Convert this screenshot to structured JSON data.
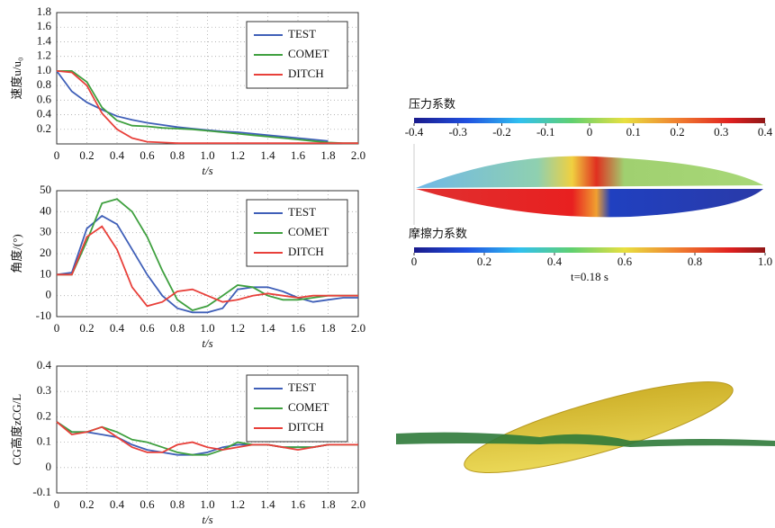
{
  "chart_data": [
    {
      "type": "line",
      "ylabel": "速度u/u₀",
      "xlabel": "t/s",
      "x": [
        0,
        0.1,
        0.2,
        0.3,
        0.4,
        0.5,
        0.6,
        0.7,
        0.8,
        0.9,
        1.0,
        1.1,
        1.2,
        1.3,
        1.4,
        1.5,
        1.6,
        1.7,
        1.8,
        1.9,
        2.0
      ],
      "series": [
        {
          "name": "TEST",
          "color": "#3f5fb8",
          "values": [
            1.0,
            0.72,
            0.57,
            0.47,
            0.38,
            0.33,
            0.29,
            0.26,
            0.23,
            0.21,
            0.19,
            0.17,
            0.16,
            0.14,
            0.12,
            0.1,
            0.08,
            0.06,
            0.04,
            null,
            null
          ]
        },
        {
          "name": "COMET",
          "color": "#3fa03f",
          "values": [
            1.0,
            1.0,
            0.85,
            0.5,
            0.32,
            0.25,
            0.24,
            0.22,
            0.21,
            0.2,
            0.18,
            0.16,
            0.14,
            0.12,
            0.1,
            0.08,
            0.06,
            0.04,
            0.02,
            0.01,
            0.01
          ]
        },
        {
          "name": "DITCH",
          "color": "#e8403a",
          "values": [
            1.0,
            0.98,
            0.8,
            0.42,
            0.2,
            0.08,
            0.03,
            0.02,
            0.01,
            0.01,
            0.01,
            0.01,
            0.01,
            0.01,
            0.01,
            0.01,
            0.01,
            0.01,
            0.01,
            0.01,
            0.01
          ]
        }
      ],
      "xlim": [
        0,
        2
      ],
      "xticks": [
        0,
        0.2,
        0.4,
        0.6,
        0.8,
        {
          "value": 1,
          "label": "1.0"
        },
        1.2,
        1.4,
        1.6,
        1.8,
        {
          "value": 2,
          "label": "2.0"
        }
      ],
      "ylim": [
        0,
        1.8
      ],
      "yticks": [
        0.2,
        0.4,
        0.6,
        0.8,
        {
          "value": 1,
          "label": "1.0"
        },
        1.2,
        1.4,
        1.6,
        1.8
      ],
      "grid": true,
      "legend": "upper right"
    },
    {
      "type": "line",
      "ylabel": "角度/(°)",
      "xlabel": "t/s",
      "x": [
        0,
        0.1,
        0.2,
        0.3,
        0.4,
        0.5,
        0.6,
        0.7,
        0.8,
        0.9,
        1.0,
        1.1,
        1.2,
        1.3,
        1.4,
        1.5,
        1.6,
        1.7,
        1.8,
        1.9,
        2.0
      ],
      "series": [
        {
          "name": "TEST",
          "color": "#3f5fb8",
          "values": [
            10,
            11,
            32,
            38,
            34,
            22,
            10,
            0,
            -6,
            -8,
            -8,
            -6,
            3,
            4,
            4,
            2,
            -1,
            -3,
            -2,
            -1,
            -1
          ]
        },
        {
          "name": "COMET",
          "color": "#3fa03f",
          "values": [
            10,
            10,
            26,
            44,
            46,
            40,
            28,
            12,
            -2,
            -7,
            -5,
            0,
            5,
            4,
            0,
            -2,
            -2,
            -1,
            0,
            0,
            0
          ]
        },
        {
          "name": "DITCH",
          "color": "#e8403a",
          "values": [
            10,
            10,
            28,
            33,
            22,
            4,
            -5,
            -3,
            2,
            3,
            0,
            -3,
            -2,
            0,
            1,
            0,
            -1,
            0,
            0,
            0,
            0
          ]
        }
      ],
      "xlim": [
        0,
        2
      ],
      "xticks": [
        0,
        0.2,
        0.4,
        0.6,
        0.8,
        {
          "value": 1,
          "label": "1.0"
        },
        1.2,
        1.4,
        1.6,
        1.8,
        {
          "value": 2,
          "label": "2.0"
        }
      ],
      "ylim": [
        -10,
        50
      ],
      "yticks": [
        -10,
        0,
        10,
        20,
        30,
        40,
        50
      ],
      "grid": true,
      "legend": "upper right"
    },
    {
      "type": "line",
      "ylabel": "CG高度zCG/L",
      "xlabel": "t/s",
      "x": [
        0,
        0.1,
        0.2,
        0.3,
        0.4,
        0.5,
        0.6,
        0.7,
        0.8,
        0.9,
        1.0,
        1.1,
        1.2,
        1.3,
        1.4,
        1.5,
        1.6,
        1.7,
        1.8,
        1.9,
        2.0
      ],
      "series": [
        {
          "name": "TEST",
          "color": "#3f5fb8",
          "values": [
            0.18,
            0.14,
            0.14,
            0.13,
            0.12,
            0.09,
            0.07,
            0.06,
            0.05,
            0.05,
            0.06,
            0.08,
            0.09,
            0.09,
            0.09,
            0.08,
            0.08,
            0.08,
            0.09,
            null,
            null
          ]
        },
        {
          "name": "COMET",
          "color": "#3fa03f",
          "values": [
            0.18,
            0.14,
            0.14,
            0.16,
            0.14,
            0.11,
            0.1,
            0.08,
            0.06,
            0.05,
            0.05,
            0.07,
            0.1,
            0.09,
            0.09,
            0.08,
            0.08,
            0.08,
            0.09,
            0.09,
            0.09
          ]
        },
        {
          "name": "DITCH",
          "color": "#e8403a",
          "values": [
            0.18,
            0.13,
            0.14,
            0.16,
            0.12,
            0.08,
            0.06,
            0.06,
            0.09,
            0.1,
            0.08,
            0.07,
            0.08,
            0.09,
            0.09,
            0.08,
            0.07,
            0.08,
            0.09,
            0.09,
            0.09
          ]
        }
      ],
      "xlim": [
        0,
        2
      ],
      "xticks": [
        0,
        0.2,
        0.4,
        0.6,
        0.8,
        {
          "value": 1,
          "label": "1.0"
        },
        1.2,
        1.4,
        1.6,
        1.8,
        {
          "value": 2,
          "label": "2.0"
        }
      ],
      "ylim": [
        -0.1,
        0.4
      ],
      "yticks": [
        -0.1,
        0,
        0.1,
        0.2,
        0.3,
        0.4
      ],
      "grid": true,
      "legend": "upper right"
    }
  ],
  "colorbars": [
    {
      "title": "压力系数",
      "lim": [
        -0.4,
        0.4
      ],
      "ticks": [
        -0.4,
        -0.3,
        -0.2,
        -0.1,
        0,
        0.1,
        0.2,
        0.3,
        0.4
      ]
    },
    {
      "title": "摩擦力系数",
      "lim": [
        0,
        1
      ],
      "ticks": [
        0,
        0.2,
        0.4,
        0.6,
        0.8,
        {
          "value": 1,
          "label": "1.0"
        }
      ]
    }
  ],
  "caption": "t=0.18 s"
}
